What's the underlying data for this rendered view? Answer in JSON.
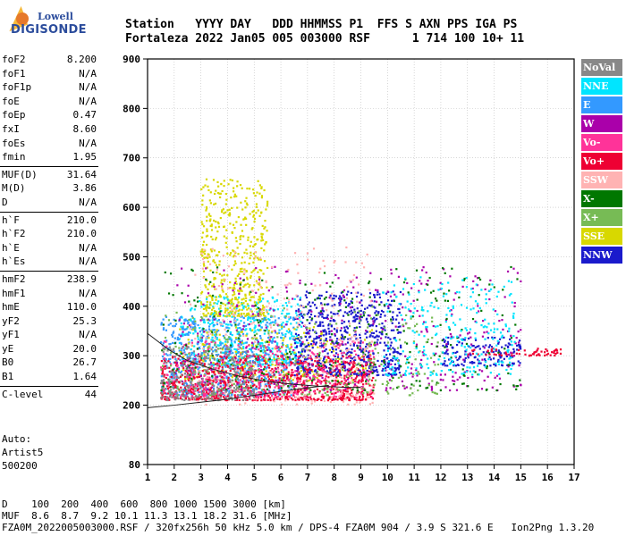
{
  "logo": {
    "line1": "Lowell",
    "line2": "DIGISONDE"
  },
  "header": {
    "line1": "Station   YYYY DAY   DDD HHMMSS P1  FFS S AXN PPS IGA PS",
    "line2": "Fortaleza 2022 Jan05 005 003000 RSF      1 714 100 10+ 11"
  },
  "params": [
    {
      "group": 1,
      "label": "foF2",
      "value": "8.200"
    },
    {
      "group": 1,
      "label": "foF1",
      "value": "N/A"
    },
    {
      "group": 1,
      "label": "foF1p",
      "value": "N/A"
    },
    {
      "group": 1,
      "label": "foE",
      "value": "N/A"
    },
    {
      "group": 1,
      "label": "foEp",
      "value": "0.47"
    },
    {
      "group": 1,
      "label": "fxI",
      "value": "8.60"
    },
    {
      "group": 1,
      "label": "foEs",
      "value": "N/A"
    },
    {
      "group": 1,
      "label": "fmin",
      "value": "1.95"
    },
    {
      "group": 2,
      "label": "MUF(D)",
      "value": "31.64"
    },
    {
      "group": 2,
      "label": "M(D)",
      "value": "3.86"
    },
    {
      "group": 2,
      "label": "D",
      "value": "N/A"
    },
    {
      "group": 3,
      "label": "h`F",
      "value": "210.0"
    },
    {
      "group": 3,
      "label": "h`F2",
      "value": "210.0"
    },
    {
      "group": 3,
      "label": "h`E",
      "value": "N/A"
    },
    {
      "group": 3,
      "label": "h`Es",
      "value": "N/A"
    },
    {
      "group": 4,
      "label": "hmF2",
      "value": "238.9"
    },
    {
      "group": 4,
      "label": "hmF1",
      "value": "N/A"
    },
    {
      "group": 4,
      "label": "hmE",
      "value": "110.0"
    },
    {
      "group": 4,
      "label": "yF2",
      "value": "25.3"
    },
    {
      "group": 4,
      "label": "yF1",
      "value": "N/A"
    },
    {
      "group": 4,
      "label": "yE",
      "value": "20.0"
    },
    {
      "group": 4,
      "label": "B0",
      "value": "26.7"
    },
    {
      "group": 4,
      "label": "B1",
      "value": "1.64"
    },
    {
      "group": 5,
      "label": "C-level",
      "value": "44"
    }
  ],
  "auto": {
    "line1": "Auto:",
    "line2": "Artist5",
    "line3": "500200"
  },
  "bottom": {
    "line1": "D    100  200  400  600  800 1000 1500 3000 [km]",
    "line2": "MUF  8.6  8.7  9.2 10.1 11.3 13.1 18.2 31.6 [MHz]",
    "line3": "FZA0M_2022005003000.RSF / 320fx256h 50 kHz 5.0 km / DPS-4 FZA0M 904 / 3.9 S 321.6 E   Ion2Png 1.3.20"
  },
  "legend": [
    {
      "label": "NoVal",
      "color": "#888888",
      "text": "#ffffff"
    },
    {
      "label": "NNE",
      "color": "#00e5ff",
      "text": "#ffffff"
    },
    {
      "label": "E",
      "color": "#3399ff",
      "text": "#ffffff"
    },
    {
      "label": "W",
      "color": "#aa00aa",
      "text": "#ffffff"
    },
    {
      "label": "Vo-",
      "color": "#ff3399",
      "text": "#ffffff"
    },
    {
      "label": "Vo+",
      "color": "#ee0033",
      "text": "#ffffff"
    },
    {
      "label": "SSW",
      "color": "#ffb3b3",
      "text": "#ffffff"
    },
    {
      "label": "X-",
      "color": "#007700",
      "text": "#ffffff"
    },
    {
      "label": "X+",
      "color": "#77bb55",
      "text": "#ffffff"
    },
    {
      "label": "SSE",
      "color": "#d8d800",
      "text": "#ffffff"
    },
    {
      "label": "NNW",
      "color": "#1a1acc",
      "text": "#ffffff"
    }
  ],
  "chart_data": {
    "type": "scatter",
    "title": "",
    "xlabel": "",
    "ylabel": "",
    "x_ticks": [
      "1",
      "2",
      "3",
      "4",
      "5",
      "6",
      "7",
      "8",
      "9",
      "10",
      "11",
      "12",
      "13",
      "14",
      "15",
      "16",
      "17"
    ],
    "y_ticks": [
      "80",
      "200",
      "300",
      "400",
      "500",
      "600",
      "700",
      "800",
      "900"
    ],
    "xlim": [
      1,
      17
    ],
    "ylim": [
      80,
      900
    ],
    "grid": true,
    "legend_position": "right",
    "clusters": [
      {
        "name": "NNE",
        "color": "#00e5ff",
        "x": [
          2.2,
          6.8
        ],
        "y": [
          280,
          420
        ],
        "n": 500
      },
      {
        "name": "E",
        "color": "#3399ff",
        "x": [
          1.5,
          6.5
        ],
        "y": [
          220,
          380
        ],
        "n": 700
      },
      {
        "name": "SSE",
        "color": "#d8d800",
        "x": [
          3.0,
          5.5
        ],
        "y": [
          380,
          660
        ],
        "n": 500
      },
      {
        "name": "SSE",
        "color": "#d8d800",
        "x": [
          2.2,
          9.5
        ],
        "y": [
          250,
          360
        ],
        "n": 250
      },
      {
        "name": "NNW",
        "color": "#1a1acc",
        "x": [
          6.5,
          10.5
        ],
        "y": [
          260,
          430
        ],
        "n": 650
      },
      {
        "name": "NNW",
        "color": "#1a1acc",
        "x": [
          12.0,
          15.0
        ],
        "y": [
          280,
          340
        ],
        "n": 150
      },
      {
        "name": "Vo+",
        "color": "#ee0033",
        "x": [
          1.5,
          9.5
        ],
        "y": [
          210,
          300
        ],
        "n": 900
      },
      {
        "name": "Vo+",
        "color": "#ee0033",
        "x": [
          13.0,
          16.5
        ],
        "y": [
          300,
          315
        ],
        "n": 60
      },
      {
        "name": "Vo-",
        "color": "#ff3399",
        "x": [
          1.5,
          9.5
        ],
        "y": [
          215,
          330
        ],
        "n": 350
      },
      {
        "name": "W",
        "color": "#aa00aa",
        "x": [
          2.0,
          15.0
        ],
        "y": [
          230,
          480
        ],
        "n": 400
      },
      {
        "name": "X-",
        "color": "#007700",
        "x": [
          1.5,
          15.0
        ],
        "y": [
          230,
          480
        ],
        "n": 280
      },
      {
        "name": "X+",
        "color": "#77bb55",
        "x": [
          1.5,
          12.0
        ],
        "y": [
          220,
          400
        ],
        "n": 280
      },
      {
        "name": "SSW",
        "color": "#ffb3b3",
        "x": [
          2.5,
          9.5
        ],
        "y": [
          200,
          520
        ],
        "n": 300
      },
      {
        "name": "NNE",
        "color": "#00e5ff",
        "x": [
          9.8,
          14.8
        ],
        "y": [
          260,
          460
        ],
        "n": 250
      },
      {
        "name": "NoVal",
        "color": "#888888",
        "x": [
          1.5,
          5.0
        ],
        "y": [
          210,
          320
        ],
        "n": 250
      }
    ],
    "curves": [
      {
        "name": "upper trace",
        "color": "#222222",
        "x": [
          1.0,
          1.8,
          2.5,
          3.5,
          4.5,
          5.5,
          6.5,
          7.5,
          8.5,
          9.0
        ],
        "y": [
          345,
          312,
          290,
          272,
          258,
          248,
          242,
          238,
          236,
          236
        ]
      },
      {
        "name": "lower trace",
        "color": "#222222",
        "x": [
          1.0,
          2.0,
          3.0,
          4.0,
          5.0,
          6.0,
          7.0,
          7.8
        ],
        "y": [
          195,
          200,
          206,
          212,
          220,
          228,
          235,
          240
        ]
      }
    ],
    "seed": 12345
  }
}
